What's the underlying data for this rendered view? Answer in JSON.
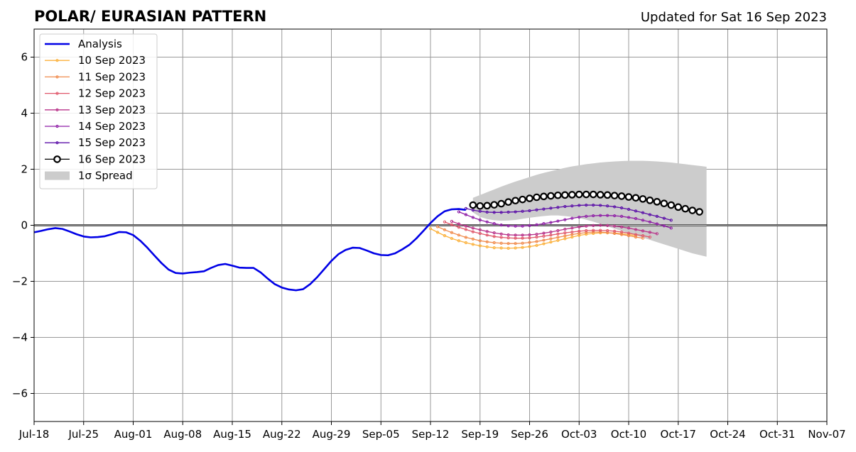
{
  "header": {
    "title": "POLAR/ EURASIAN  PATTERN",
    "updated": "Updated for Sat 16 Sep 2023"
  },
  "colors": {
    "analysis": "#0000e6",
    "spread": "#cccccc",
    "grid": "#999999",
    "zero_line": "#555555"
  },
  "chart_data": {
    "type": "line",
    "title": "POLAR/ EURASIAN  PATTERN",
    "xlabel": "",
    "ylabel": "",
    "xlim": [
      "2023-07-18",
      "2023-11-07"
    ],
    "ylim": [
      -7,
      7
    ],
    "grid": true,
    "legend_position": "top-left",
    "x_ticks": [
      "Jul-18",
      "Jul-25",
      "Aug-01",
      "Aug-08",
      "Aug-15",
      "Aug-22",
      "Aug-29",
      "Sep-05",
      "Sep-12",
      "Sep-19",
      "Sep-26",
      "Oct-03",
      "Oct-10",
      "Oct-17",
      "Oct-24",
      "Oct-31",
      "Nov-07"
    ],
    "y_ticks": [
      -6,
      -4,
      -2,
      0,
      2,
      4,
      6
    ],
    "y_tick_labels": [
      "−6",
      "−4",
      "−2",
      "0",
      "2",
      "4",
      "6"
    ],
    "analysis": {
      "name": "Analysis",
      "color": "#0000e6",
      "start": "2023-07-18",
      "values": [
        -0.25,
        -0.2,
        -0.14,
        -0.1,
        -0.13,
        -0.22,
        -0.32,
        -0.4,
        -0.43,
        -0.42,
        -0.39,
        -0.32,
        -0.24,
        -0.25,
        -0.35,
        -0.55,
        -0.8,
        -1.08,
        -1.35,
        -1.58,
        -1.7,
        -1.72,
        -1.69,
        -1.67,
        -1.64,
        -1.52,
        -1.42,
        -1.38,
        -1.44,
        -1.51,
        -1.52,
        -1.52,
        -1.68,
        -1.9,
        -2.1,
        -2.22,
        -2.29,
        -2.32,
        -2.28,
        -2.1,
        -1.85,
        -1.56,
        -1.27,
        -1.03,
        -0.88,
        -0.8,
        -0.81,
        -0.9,
        -1.0,
        -1.06,
        -1.07,
        -1.0,
        -0.86,
        -0.7,
        -0.47,
        -0.2,
        0.08,
        0.32,
        0.5,
        0.57,
        0.58,
        0.55
      ]
    },
    "forecasts": [
      {
        "name": "10 Sep 2023",
        "color": "#fbb13c",
        "start": "2023-09-12",
        "values": [
          -0.12,
          -0.25,
          -0.37,
          -0.47,
          -0.55,
          -0.62,
          -0.68,
          -0.73,
          -0.77,
          -0.8,
          -0.81,
          -0.82,
          -0.81,
          -0.79,
          -0.76,
          -0.72,
          -0.66,
          -0.6,
          -0.54,
          -0.48,
          -0.42,
          -0.36,
          -0.32,
          -0.29,
          -0.27,
          -0.27,
          -0.28,
          -0.3,
          -0.33,
          -0.37
        ]
      },
      {
        "name": "11 Sep 2023",
        "color": "#f08a4b",
        "start": "2023-09-13",
        "values": [
          -0.05,
          -0.16,
          -0.26,
          -0.35,
          -0.43,
          -0.49,
          -0.55,
          -0.59,
          -0.62,
          -0.64,
          -0.65,
          -0.65,
          -0.64,
          -0.61,
          -0.58,
          -0.53,
          -0.48,
          -0.43,
          -0.38,
          -0.33,
          -0.29,
          -0.26,
          -0.24,
          -0.24,
          -0.26,
          -0.29,
          -0.33,
          -0.37,
          -0.42,
          -0.46
        ]
      },
      {
        "name": "12 Sep 2023",
        "color": "#e0576a",
        "start": "2023-09-14",
        "values": [
          0.12,
          0.02,
          -0.07,
          -0.15,
          -0.23,
          -0.29,
          -0.35,
          -0.4,
          -0.43,
          -0.45,
          -0.46,
          -0.46,
          -0.45,
          -0.42,
          -0.39,
          -0.35,
          -0.31,
          -0.27,
          -0.24,
          -0.21,
          -0.19,
          -0.18,
          -0.18,
          -0.19,
          -0.21,
          -0.24,
          -0.28,
          -0.33,
          -0.37,
          -0.42
        ]
      },
      {
        "name": "13 Sep 2023",
        "color": "#b83289",
        "start": "2023-09-15",
        "values": [
          0.14,
          0.05,
          -0.03,
          -0.1,
          -0.16,
          -0.22,
          -0.27,
          -0.31,
          -0.34,
          -0.35,
          -0.35,
          -0.34,
          -0.32,
          -0.28,
          -0.24,
          -0.19,
          -0.14,
          -0.1,
          -0.06,
          -0.03,
          -0.01,
          0.0,
          -0.01,
          -0.03,
          -0.06,
          -0.1,
          -0.15,
          -0.2,
          -0.25,
          -0.3
        ]
      },
      {
        "name": "14 Sep 2023",
        "color": "#8f1fa6",
        "start": "2023-09-16",
        "values": [
          0.48,
          0.38,
          0.28,
          0.19,
          0.12,
          0.06,
          0.01,
          -0.02,
          -0.03,
          -0.03,
          -0.01,
          0.02,
          0.06,
          0.1,
          0.15,
          0.2,
          0.25,
          0.29,
          0.32,
          0.34,
          0.35,
          0.35,
          0.34,
          0.32,
          0.28,
          0.24,
          0.18,
          0.12,
          0.05,
          -0.02,
          -0.1
        ]
      },
      {
        "name": "15 Sep 2023",
        "color": "#5b0fa8",
        "start": "2023-09-17",
        "values": [
          0.6,
          0.54,
          0.5,
          0.47,
          0.46,
          0.46,
          0.47,
          0.48,
          0.5,
          0.52,
          0.55,
          0.58,
          0.61,
          0.64,
          0.67,
          0.69,
          0.71,
          0.72,
          0.72,
          0.71,
          0.69,
          0.66,
          0.62,
          0.57,
          0.51,
          0.45,
          0.38,
          0.32,
          0.25,
          0.18
        ]
      },
      {
        "name": "16 Sep 2023",
        "color": "#000000",
        "start": "2023-09-18",
        "values": [
          0.72,
          0.69,
          0.7,
          0.73,
          0.77,
          0.83,
          0.88,
          0.92,
          0.96,
          1.0,
          1.03,
          1.05,
          1.07,
          1.08,
          1.09,
          1.1,
          1.1,
          1.1,
          1.09,
          1.08,
          1.06,
          1.04,
          1.01,
          0.98,
          0.94,
          0.89,
          0.84,
          0.78,
          0.72,
          0.65,
          0.59,
          0.53,
          0.48
        ]
      }
    ],
    "spread": {
      "name": "1σ Spread",
      "color": "#cccccc",
      "start": "2023-09-18",
      "upper": [
        0.98,
        1.08,
        1.18,
        1.28,
        1.38,
        1.47,
        1.56,
        1.64,
        1.72,
        1.8,
        1.87,
        1.93,
        1.99,
        2.05,
        2.1,
        2.14,
        2.18,
        2.21,
        2.24,
        2.26,
        2.28,
        2.29,
        2.3,
        2.3,
        2.3,
        2.29,
        2.28,
        2.26,
        2.24,
        2.21,
        2.18,
        2.15,
        2.12,
        2.09
      ],
      "lower": [
        0.46,
        0.3,
        0.22,
        0.18,
        0.16,
        0.17,
        0.19,
        0.23,
        0.27,
        0.3,
        0.33,
        0.35,
        0.35,
        0.33,
        0.3,
        0.26,
        0.2,
        0.13,
        0.05,
        -0.04,
        -0.12,
        -0.2,
        -0.28,
        -0.36,
        -0.44,
        -0.52,
        -0.6,
        -0.68,
        -0.76,
        -0.84,
        -0.92,
        -1.0,
        -1.06,
        -1.12
      ]
    }
  },
  "legend": {
    "items": [
      {
        "label": "Analysis",
        "style": "analysis"
      },
      {
        "label": "10 Sep 2023",
        "style": "forecast",
        "color": "#fbb13c"
      },
      {
        "label": "11 Sep 2023",
        "style": "forecast",
        "color": "#f08a4b"
      },
      {
        "label": "12 Sep 2023",
        "style": "forecast",
        "color": "#e0576a"
      },
      {
        "label": "13 Sep 2023",
        "style": "forecast",
        "color": "#b83289"
      },
      {
        "label": "14 Sep 2023",
        "style": "forecast",
        "color": "#8f1fa6"
      },
      {
        "label": "15 Sep 2023",
        "style": "forecast",
        "color": "#5b0fa8"
      },
      {
        "label": "16 Sep 2023",
        "style": "latest",
        "color": "#000000"
      },
      {
        "label": "1σ Spread",
        "style": "spread",
        "color": "#cccccc"
      }
    ]
  }
}
